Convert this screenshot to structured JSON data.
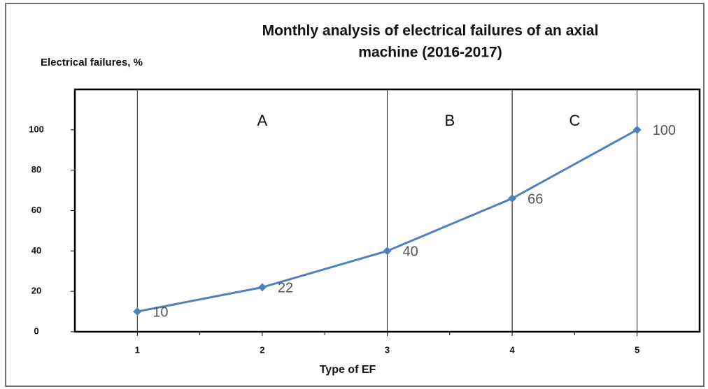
{
  "chart_data": {
    "type": "line",
    "title": [
      "Monthly analysis of electrical failures of an axial",
      "machine (2016-2017)"
    ],
    "y_label": "Electrical failures, %",
    "x_label": "Type of EF",
    "x": [
      1,
      2,
      3,
      4,
      5
    ],
    "series": [
      {
        "name": "Electrical failures",
        "color": "#4f81bd",
        "values": [
          10,
          22,
          40,
          66,
          100
        ]
      }
    ],
    "xlim": [
      0.5,
      5.5
    ],
    "xticks": [
      1,
      2,
      3,
      4,
      5
    ],
    "xminor_ticks": [
      1.5,
      2.5,
      3.5,
      4.5
    ],
    "ylim": [
      0,
      120
    ],
    "yticks": [
      0,
      20,
      40,
      60,
      80,
      100
    ],
    "zones": [
      {
        "label": "A",
        "from": 1,
        "to": 3
      },
      {
        "label": "B",
        "from": 3,
        "to": 4
      },
      {
        "label": "C",
        "from": 4,
        "to": 5
      }
    ]
  }
}
